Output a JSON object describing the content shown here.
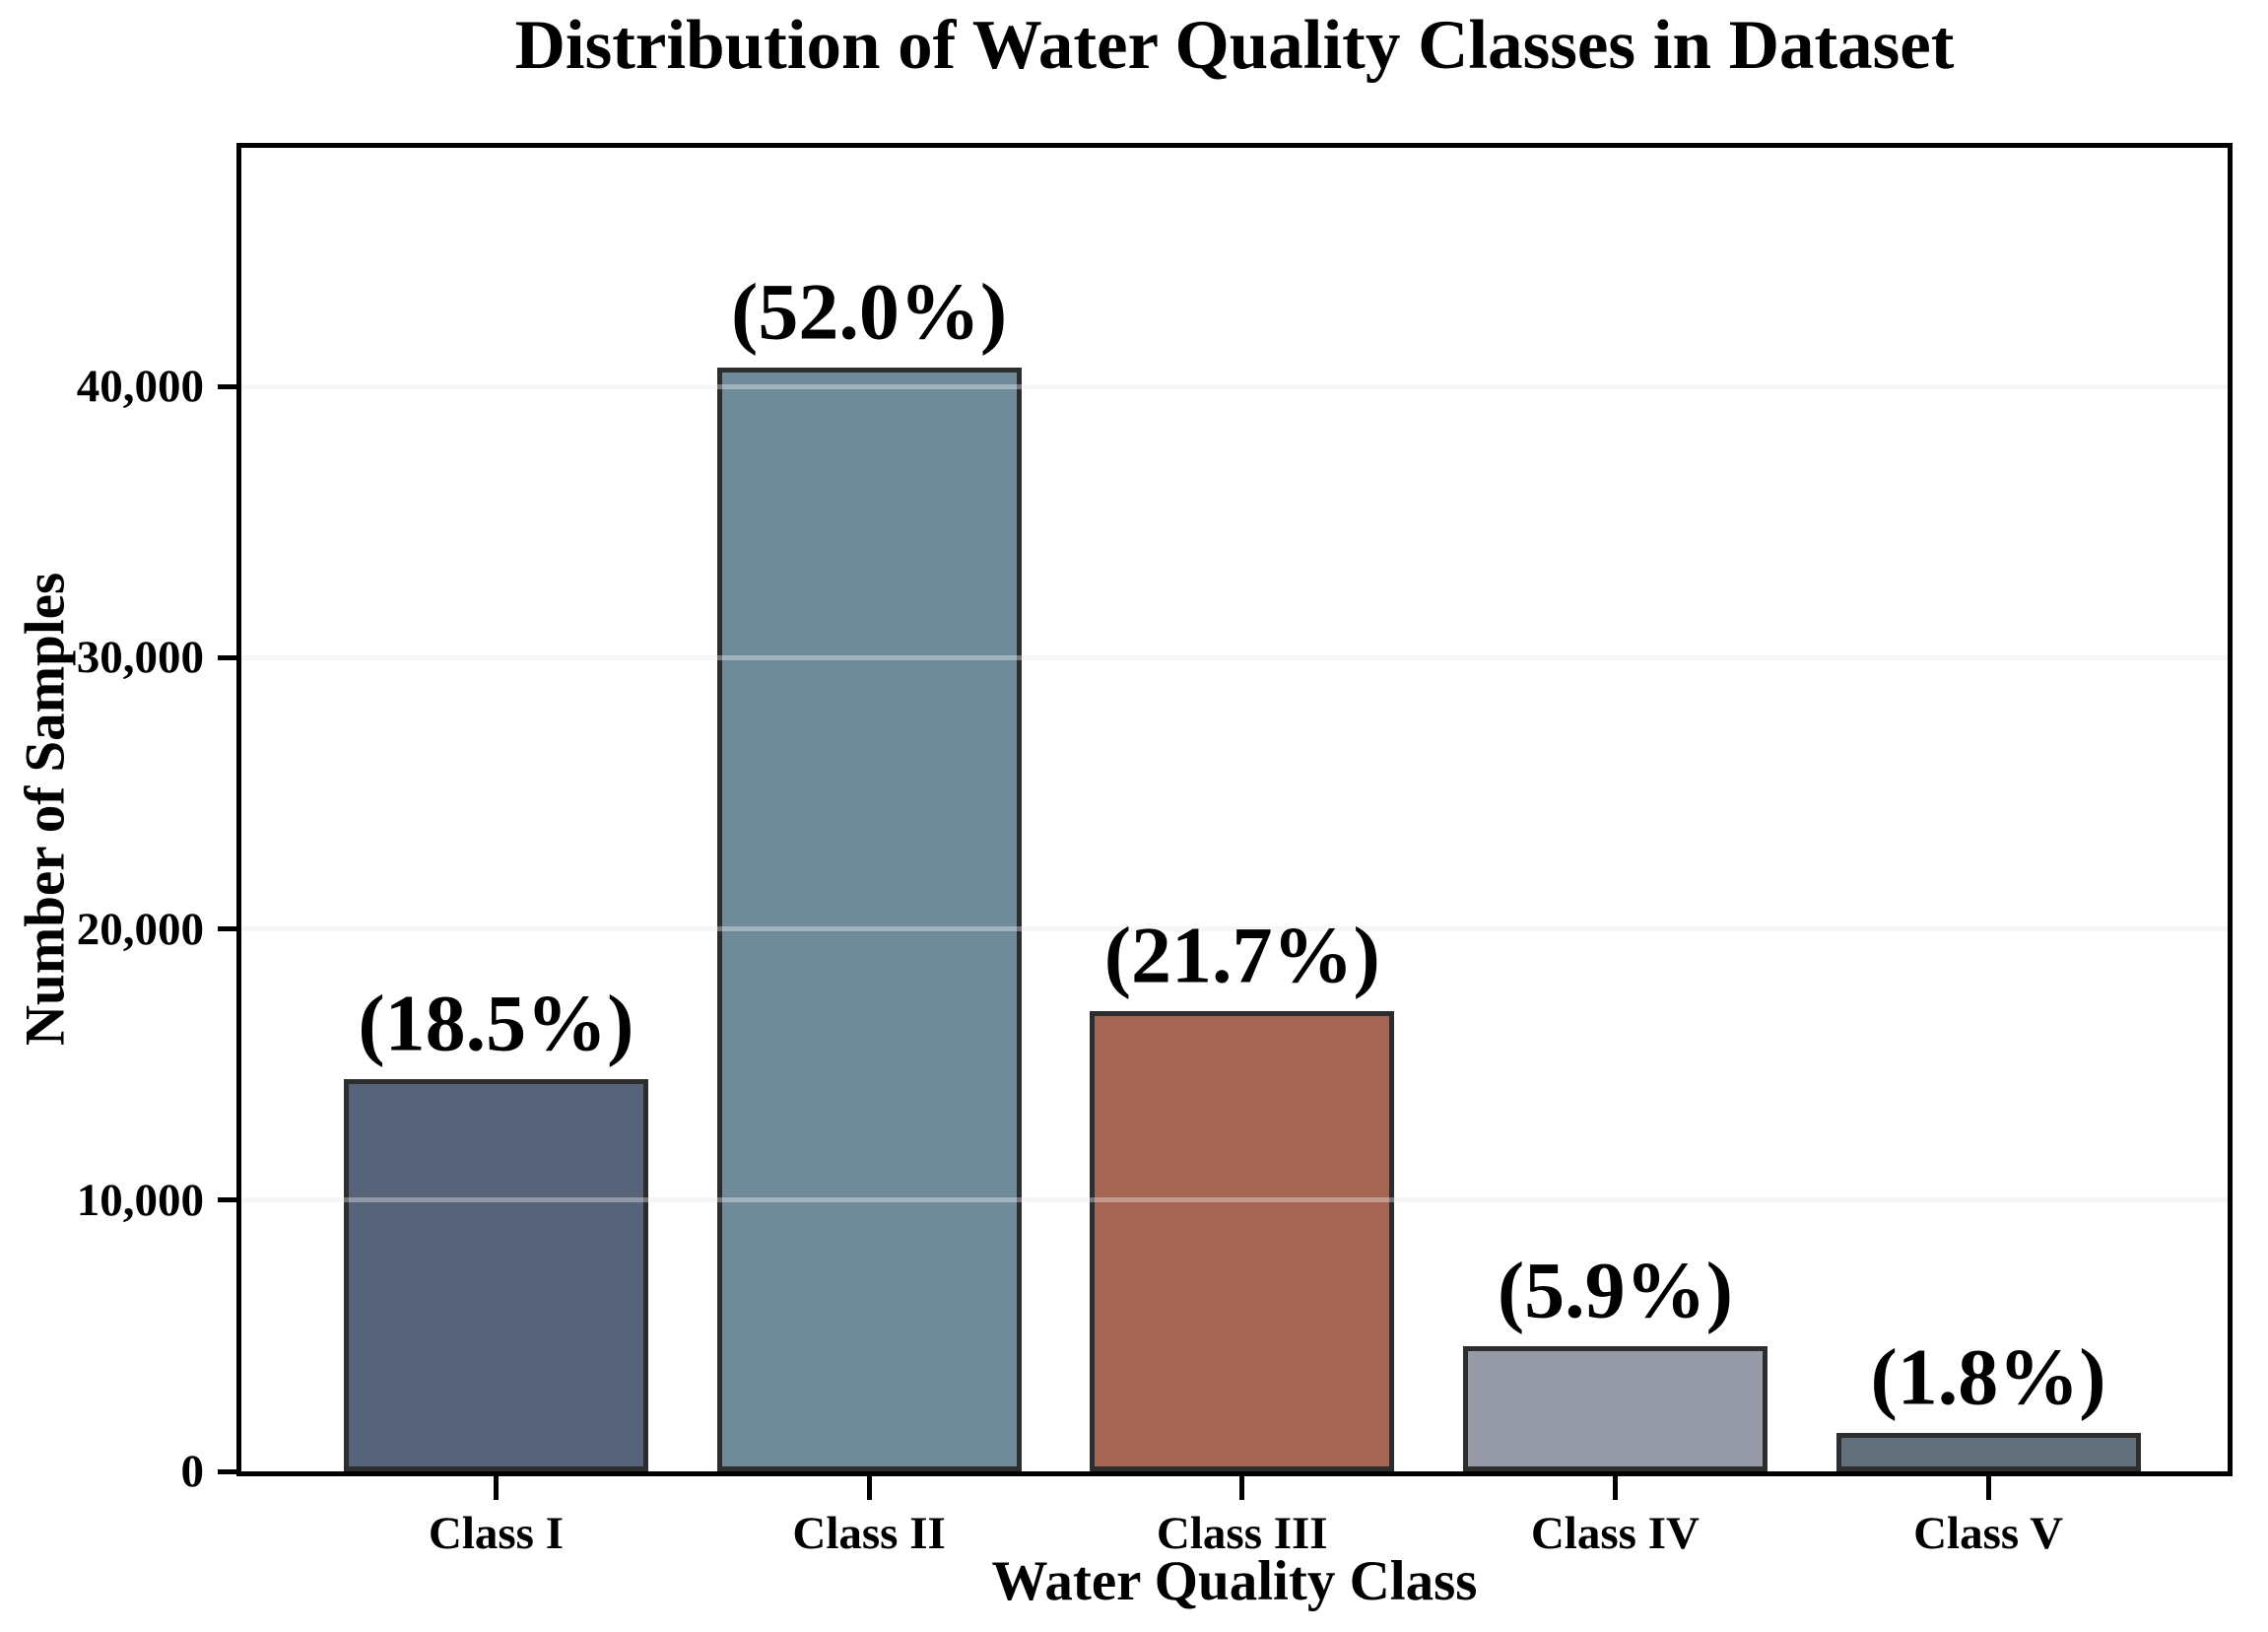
{
  "chart_data": {
    "type": "bar",
    "title": "Distribution of Water Quality Classes in Dataset",
    "xlabel": "Water Quality Class",
    "ylabel": "Number of Samples",
    "categories": [
      "Class I",
      "Class II",
      "Class III",
      "Class IV",
      "Class V"
    ],
    "values": [
      14480,
      40700,
      16980,
      4620,
      1410
    ],
    "bar_labels": [
      "(18.5%)",
      "(52.0%)",
      "(21.7%)",
      "(5.9%)",
      "(1.8%)"
    ],
    "bar_colors": [
      "#566379",
      "#6f8a98",
      "#a56552",
      "#979ba7",
      "#62707c"
    ],
    "bar_edge_color": "#2d2d2d",
    "ylim": [
      0,
      48800
    ],
    "yticks": [
      0,
      10000,
      20000,
      30000,
      40000
    ],
    "ytick_labels": [
      "0",
      "10,000",
      "20,000",
      "30,000",
      "40,000"
    ],
    "grid": "horizontal",
    "gridline_color": "#f2f2f2",
    "legend": "none"
  }
}
